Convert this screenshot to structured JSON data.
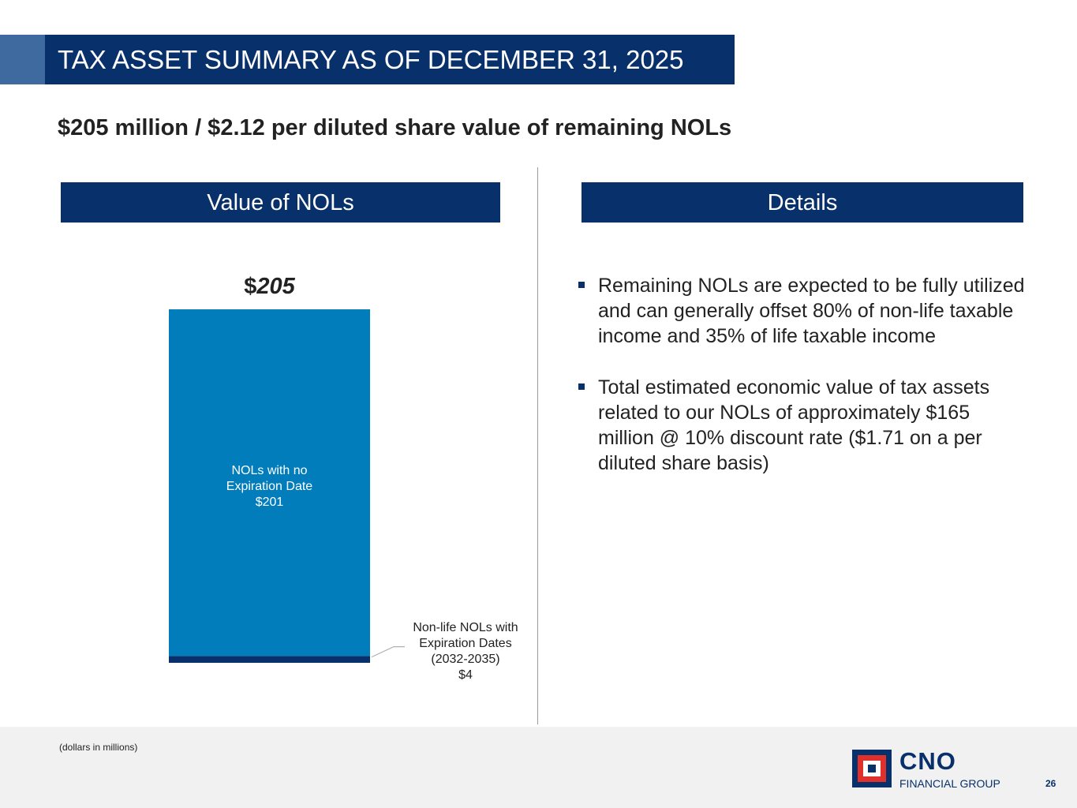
{
  "header": {
    "title": "TAX ASSET SUMMARY AS OF DECEMBER 31, 2025",
    "subtitle": "$205 million / $2.12 per diluted share value of remaining NOLs"
  },
  "sections": {
    "left_title": "Value of NOLs",
    "right_title": "Details"
  },
  "chart_data": {
    "type": "bar",
    "stacked": true,
    "categories": [
      "Value of NOLs"
    ],
    "series": [
      {
        "name": "Non-life NOLs with Expiration Dates (2032-2035)",
        "values": [
          4
        ],
        "color": "#08306b"
      },
      {
        "name": "NOLs with no Expiration Date",
        "values": [
          201
        ],
        "color": "#007dba"
      }
    ],
    "total_label_prefix": "$",
    "total_label_value": "205",
    "segment_labels": {
      "no_expiration": [
        "NOLs with no",
        "Expiration Date",
        "$201"
      ],
      "with_expiration": [
        "Non-life NOLs with",
        "Expiration Dates",
        "(2032-2035)",
        "$4"
      ]
    },
    "units": "dollars in millions",
    "ylim": [
      0,
      205
    ]
  },
  "details": {
    "bullets": [
      "Remaining NOLs are expected to be fully utilized and can generally offset 80% of non-life taxable income and 35% of life taxable income",
      "Total estimated economic value of tax assets related to our NOLs of approximately $165 million @ 10% discount rate ($1.71 on a per diluted share basis)"
    ]
  },
  "footer": {
    "note": "(dollars in millions)",
    "logo_name": "CNO",
    "logo_sub": "FINANCIAL GROUP",
    "page_number": "26"
  },
  "colors": {
    "navy": "#08306b",
    "bar_blue": "#007dba",
    "accent": "#3f6a9f",
    "logo_red": "#e0302b"
  }
}
